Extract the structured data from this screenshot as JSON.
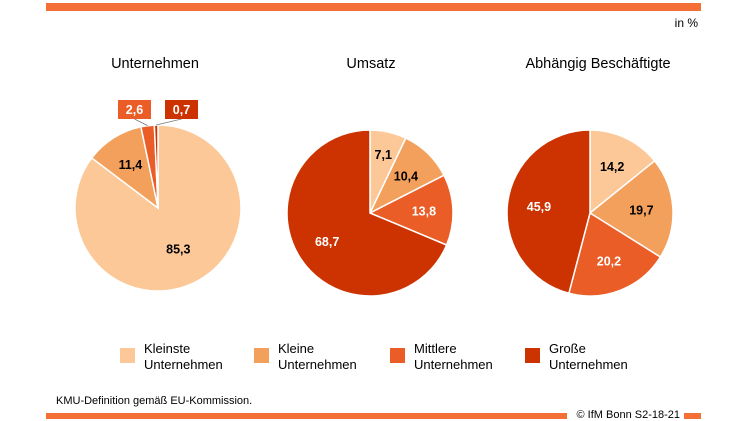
{
  "unit": "in %",
  "footnote": "KMU-Definition gemäß EU-Kommission.",
  "credit": "© IfM Bonn S2-18-21",
  "colors": {
    "accent_bar": "#f36f36",
    "kleinste": "#fcc898",
    "kleine": "#f2a05c",
    "mittlere": "#ea5d26",
    "grosse": "#cc3300"
  },
  "legend": [
    {
      "line1": "Kleinste",
      "line2": "Unternehmen",
      "color": "#fcc898"
    },
    {
      "line1": "Kleine",
      "line2": "Unternehmen",
      "color": "#f2a05c"
    },
    {
      "line1": "Mittlere",
      "line2": "Unternehmen",
      "color": "#ea5d26"
    },
    {
      "line1": "Große",
      "line2": "Unternehmen",
      "color": "#cc3300"
    }
  ],
  "chart_data": [
    {
      "type": "pie",
      "title": "Unternehmen",
      "categories": [
        "Kleinste Unternehmen",
        "Kleine Unternehmen",
        "Mittlere Unternehmen",
        "Große Unternehmen"
      ],
      "values": [
        85.3,
        11.4,
        2.6,
        0.7
      ],
      "labels": [
        "85,3",
        "11,4",
        "2,6",
        "0,7"
      ]
    },
    {
      "type": "pie",
      "title": "Umsatz",
      "categories": [
        "Kleinste Unternehmen",
        "Kleine Unternehmen",
        "Mittlere Unternehmen",
        "Große Unternehmen"
      ],
      "values": [
        7.1,
        10.4,
        13.8,
        68.7
      ],
      "labels": [
        "7,1",
        "10,4",
        "13,8",
        "68,7"
      ]
    },
    {
      "type": "pie",
      "title": "Abhängig Beschäftigte",
      "categories": [
        "Kleinste Unternehmen",
        "Kleine Unternehmen",
        "Mittlere Unternehmen",
        "Große Unternehmen"
      ],
      "values": [
        14.2,
        19.7,
        20.2,
        45.9
      ],
      "labels": [
        "14,2",
        "19,7",
        "20,2",
        "45,9"
      ]
    }
  ]
}
